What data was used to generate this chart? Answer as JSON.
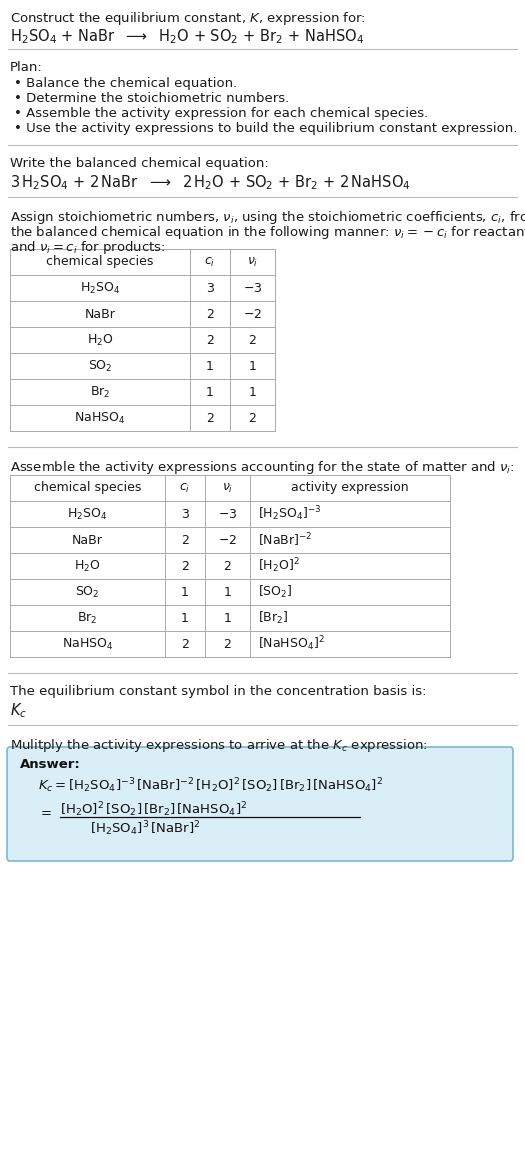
{
  "title_line1": "Construct the equilibrium constant, $K$, expression for:",
  "title_line2": "$\\mathrm{H_2SO_4}$ + NaBr  $\\longrightarrow$  $\\mathrm{H_2O}$ + $\\mathrm{SO_2}$ + $\\mathrm{Br_2}$ + $\\mathrm{NaHSO_4}$",
  "plan_header": "Plan:",
  "plan_items": [
    "Balance the chemical equation.",
    "Determine the stoichiometric numbers.",
    "Assemble the activity expression for each chemical species.",
    "Use the activity expressions to build the equilibrium constant expression."
  ],
  "balanced_header": "Write the balanced chemical equation:",
  "balanced_eq": "$3\\,\\mathrm{H_2SO_4}$ + $2\\,\\mathrm{NaBr}$  $\\longrightarrow$  $2\\,\\mathrm{H_2O}$ + $\\mathrm{SO_2}$ + $\\mathrm{Br_2}$ + $2\\,\\mathrm{NaHSO_4}$",
  "stoich_header1": "Assign stoichiometric numbers, $\\nu_i$, using the stoichiometric coefficients, $c_i$, from",
  "stoich_header2": "the balanced chemical equation in the following manner: $\\nu_i = -c_i$ for reactants",
  "stoich_header3": "and $\\nu_i = c_i$ for products:",
  "table1_col0": "chemical species",
  "table1_col1": "$c_i$",
  "table1_col2": "$\\nu_i$",
  "table1_rows": [
    [
      "$\\mathrm{H_2SO_4}$",
      "3",
      "$-3$"
    ],
    [
      "NaBr",
      "2",
      "$-2$"
    ],
    [
      "$\\mathrm{H_2O}$",
      "2",
      "2"
    ],
    [
      "$\\mathrm{SO_2}$",
      "1",
      "1"
    ],
    [
      "$\\mathrm{Br_2}$",
      "1",
      "1"
    ],
    [
      "$\\mathrm{NaHSO_4}$",
      "2",
      "2"
    ]
  ],
  "activity_header": "Assemble the activity expressions accounting for the state of matter and $\\nu_i$:",
  "table2_col0": "chemical species",
  "table2_col1": "$c_i$",
  "table2_col2": "$\\nu_i$",
  "table2_col3": "activity expression",
  "table2_rows": [
    [
      "$\\mathrm{H_2SO_4}$",
      "3",
      "$-3$",
      "$[\\mathrm{H_2SO_4}]^{-3}$"
    ],
    [
      "NaBr",
      "2",
      "$-2$",
      "$[\\mathrm{NaBr}]^{-2}$"
    ],
    [
      "$\\mathrm{H_2O}$",
      "2",
      "2",
      "$[\\mathrm{H_2O}]^{2}$"
    ],
    [
      "$\\mathrm{SO_2}$",
      "1",
      "1",
      "$[\\mathrm{SO_2}]$"
    ],
    [
      "$\\mathrm{Br_2}$",
      "1",
      "1",
      "$[\\mathrm{Br_2}]$"
    ],
    [
      "$\\mathrm{NaHSO_4}$",
      "2",
      "2",
      "$[\\mathrm{NaHSO_4}]^{2}$"
    ]
  ],
  "kc_header": "The equilibrium constant symbol in the concentration basis is:",
  "kc_symbol": "$K_c$",
  "multiply_header": "Mulitply the activity expressions to arrive at the $K_c$ expression:",
  "answer_label": "Answer:",
  "answer_line1": "$K_c = [\\mathrm{H_2SO_4}]^{-3}\\,[\\mathrm{NaBr}]^{-2}\\,[\\mathrm{H_2O}]^{2}\\,[\\mathrm{SO_2}]\\,[\\mathrm{Br_2}]\\,[\\mathrm{NaHSO_4}]^{2}$",
  "answer_equals": "$=$",
  "answer_numerator": "$[\\mathrm{H_2O}]^{2}\\,[\\mathrm{SO_2}]\\,[\\mathrm{Br_2}]\\,[\\mathrm{NaHSO_4}]^{2}$",
  "answer_denominator": "$[\\mathrm{H_2SO_4}]^{3}\\,[\\mathrm{NaBr}]^{2}$",
  "bg_color": "#ffffff",
  "text_color": "#1a1a1a",
  "table_line_color": "#aaaaaa",
  "answer_box_facecolor": "#daeef8",
  "answer_box_edgecolor": "#7ab8d4",
  "separator_color": "#bbbbbb",
  "fs": 9.5,
  "fs_eq": 10.5,
  "fs_table": 9.0
}
